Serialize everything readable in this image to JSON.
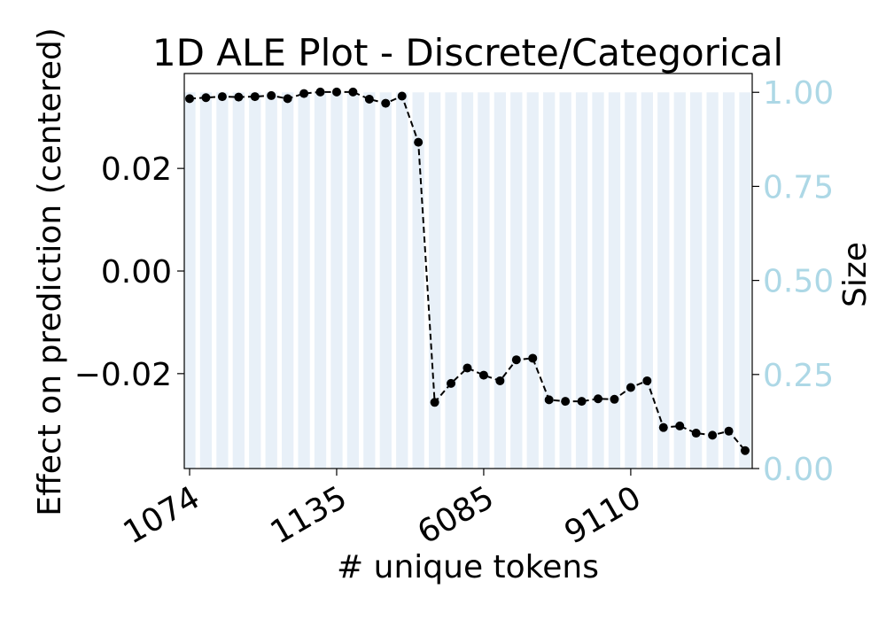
{
  "chart_data": {
    "type": "line",
    "title": "1D ALE Plot - Discrete/Categorical",
    "xlabel": "# unique tokens",
    "ylabel": "Effect on prediction (centered)",
    "y2label": "Size",
    "x_tick_labels": [
      "1074",
      "1135",
      "6085",
      "9110"
    ],
    "x_tick_indices": [
      0,
      9,
      18,
      27
    ],
    "ylim": [
      -0.0385,
      0.0385
    ],
    "y_ticks": [
      -0.02,
      0.0,
      0.02
    ],
    "y_tick_labels": [
      "−0.02",
      "0.00",
      "0.02"
    ],
    "y2lim": [
      0,
      1.05
    ],
    "y2_ticks": [
      0.0,
      0.25,
      0.5,
      0.75,
      1.0
    ],
    "y2_tick_labels": [
      "0.00",
      "0.25",
      "0.50",
      "0.75",
      "1.00"
    ],
    "grid": false,
    "series": [
      {
        "values": [
          0.0336,
          0.0338,
          0.034,
          0.0339,
          0.034,
          0.0342,
          0.0336,
          0.0346,
          0.0349,
          0.0349,
          0.0349,
          0.0335,
          0.0327,
          0.0341,
          0.0251,
          -0.0256,
          -0.0219,
          -0.0189,
          -0.0203,
          -0.0214,
          -0.0173,
          -0.017,
          -0.0251,
          -0.0254,
          -0.0254,
          -0.0249,
          -0.025,
          -0.0227,
          -0.0214,
          -0.0305,
          -0.0302,
          -0.0316,
          -0.032,
          -0.0312,
          -0.035
        ]
      }
    ],
    "bars": {
      "values": [
        1,
        1,
        1,
        1,
        1,
        1,
        1,
        1,
        1,
        1,
        1,
        1,
        1,
        1,
        1,
        1,
        1,
        1,
        1,
        1,
        1,
        1,
        1,
        1,
        1,
        1,
        1,
        1,
        1,
        1,
        1,
        1,
        1,
        1,
        1
      ]
    },
    "colors": {
      "line": "#000000",
      "bars": "#e8f0f8",
      "right_axis": "#add8e6"
    }
  }
}
